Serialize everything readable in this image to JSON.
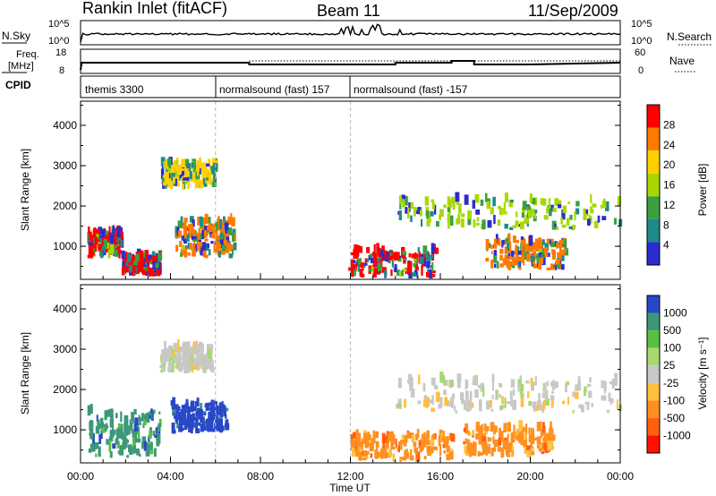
{
  "header": {
    "station": "Rankin Inlet (fitACF)",
    "beam": "Beam 11",
    "date": "11/Sep/2009"
  },
  "noise_panel": {
    "left_label": "N.Sky",
    "right_label": "N.Search",
    "y_ticks": [
      "10^5",
      "10^0"
    ]
  },
  "freq_panel": {
    "left_label_line1": "Freq.",
    "left_label_line2": "[MHz]",
    "right_label": "Nave",
    "left_ticks": [
      "18",
      "8"
    ],
    "right_ticks": [
      "60",
      "0"
    ]
  },
  "cpid_panel": {
    "label": "CPID",
    "segments": [
      {
        "start_hour": 0.0,
        "text": "themis 3300"
      },
      {
        "start_hour": 6.0,
        "text": "normalsound (fast) 157"
      },
      {
        "start_hour": 12.0,
        "text": "normalsound (fast) -157"
      }
    ]
  },
  "chart_data": [
    {
      "type": "heatmap",
      "name": "Power",
      "ylabel": "Slant Range [km]",
      "xlim": [
        0,
        24
      ],
      "ylim": [
        180,
        4600
      ],
      "y_ticks": [
        1000,
        2000,
        3000,
        4000
      ],
      "colorbar": {
        "label": "Power [dB]",
        "ticks": [
          "28",
          "24",
          "20",
          "16",
          "12",
          "8",
          "4"
        ],
        "colors": [
          "#ff0000",
          "#ff7a00",
          "#ffd000",
          "#a8d800",
          "#3aa040",
          "#1f8a8a",
          "#2b2bd0"
        ]
      },
      "regions": [
        {
          "t0": 0.3,
          "t1": 1.8,
          "r0": 700,
          "r1": 1300,
          "value_db": 26
        },
        {
          "t0": 1.8,
          "t1": 3.5,
          "r0": 250,
          "r1": 700,
          "value_db": 28
        },
        {
          "t0": 4.2,
          "t1": 6.8,
          "r0": 700,
          "r1": 1600,
          "value_db": 25
        },
        {
          "t0": 11.9,
          "t1": 15.8,
          "r0": 200,
          "r1": 850,
          "value_db": 28
        },
        {
          "t0": 18.0,
          "t1": 21.5,
          "r0": 400,
          "r1": 1100,
          "value_db": 24
        },
        {
          "t0": 14.0,
          "t1": 24.0,
          "r0": 1400,
          "r1": 2100,
          "value_db": 14
        },
        {
          "t0": 3.5,
          "t1": 6.0,
          "r0": 2400,
          "r1": 3000,
          "value_db": 18
        }
      ]
    },
    {
      "type": "heatmap",
      "name": "Velocity",
      "ylabel": "Slant Range [km]",
      "xlabel": "Time UT",
      "xlim": [
        0,
        24
      ],
      "ylim": [
        180,
        4600
      ],
      "y_ticks": [
        1000,
        2000,
        3000,
        4000
      ],
      "x_ticks": [
        "00:00",
        "04:00",
        "08:00",
        "12:00",
        "16:00",
        "20:00",
        "00:00"
      ],
      "colorbar": {
        "label": "Velocity [m s⁻¹]",
        "ticks": [
          "1000",
          "500",
          "100",
          "25",
          "-25",
          "-100",
          "-500",
          "-1000"
        ],
        "colors": [
          "#2848c8",
          "#3c9878",
          "#5ac040",
          "#a8d870",
          "#c8c8c8",
          "#ffc040",
          "#ff9020",
          "#ff6010",
          "#ff1000"
        ]
      },
      "regions": [
        {
          "t0": 4.0,
          "t1": 6.5,
          "r0": 900,
          "r1": 1600,
          "value_ms": 1000
        },
        {
          "t0": 0.3,
          "t1": 3.5,
          "r0": 300,
          "r1": 1400,
          "value_ms": 300
        },
        {
          "t0": 12.0,
          "t1": 16.5,
          "r0": 200,
          "r1": 800,
          "value_ms": -300
        },
        {
          "t0": 17.0,
          "t1": 21.0,
          "r0": 300,
          "r1": 1000,
          "value_ms": -400
        },
        {
          "t0": 14.0,
          "t1": 24.0,
          "r0": 1400,
          "r1": 2200,
          "value_ms": 0
        },
        {
          "t0": 3.5,
          "t1": 5.8,
          "r0": 2400,
          "r1": 3000,
          "value_ms": 0
        }
      ]
    }
  ]
}
